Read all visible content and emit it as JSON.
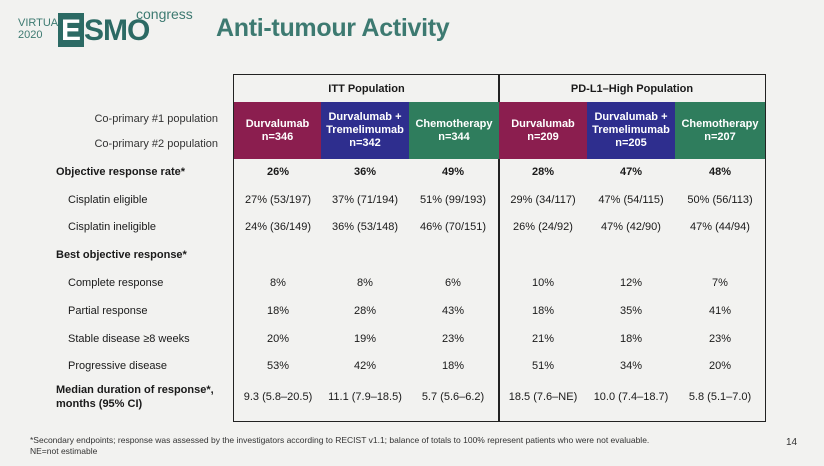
{
  "logo": {
    "virtual": "VIRTUAL",
    "year": "2020",
    "esmo_e": "E",
    "esmo_rest": "SMO",
    "congress": "congress"
  },
  "title": "Anti-tumour Activity",
  "groups": {
    "itt": "ITT Population",
    "pdl1": "PD-L1–High Population"
  },
  "coprimary": {
    "first": "Co-primary #1 population",
    "second": "Co-primary #2 population"
  },
  "columns": [
    {
      "name": "Durvalumab",
      "n": "n=346"
    },
    {
      "name1": "Durvalumab +",
      "name2": "Tremelimumab",
      "n": "n=342"
    },
    {
      "name": "Chemotherapy",
      "n": "n=344"
    },
    {
      "name": "Durvalumab",
      "n": "n=209"
    },
    {
      "name1": "Durvalumab +",
      "name2": "Tremelimumab",
      "n": "n=205"
    },
    {
      "name": "Chemotherapy",
      "n": "n=207"
    }
  ],
  "rows": [
    {
      "label": "Objective response rate*",
      "values": [
        "26%",
        "36%",
        "49%",
        "28%",
        "47%",
        "48%"
      ]
    },
    {
      "label": "Cisplatin eligible",
      "values": [
        "27% (53/197)",
        "37% (71/194)",
        "51% (99/193)",
        "29% (34/117)",
        "47% (54/115)",
        "50% (56/113)"
      ]
    },
    {
      "label": "Cisplatin ineligible",
      "values": [
        "24% (36/149)",
        "36% (53/148)",
        "46% (70/151)",
        "26% (24/92)",
        "47% (42/90)",
        "47% (44/94)"
      ]
    },
    {
      "label": "Best objective response*",
      "values": [
        "",
        "",
        "",
        "",
        "",
        ""
      ]
    },
    {
      "label": "Complete response",
      "values": [
        "8%",
        "8%",
        "6%",
        "10%",
        "12%",
        "7%"
      ]
    },
    {
      "label": "Partial response",
      "values": [
        "18%",
        "28%",
        "43%",
        "18%",
        "35%",
        "41%"
      ]
    },
    {
      "label": "Stable disease ≥8 weeks",
      "values": [
        "20%",
        "19%",
        "23%",
        "21%",
        "18%",
        "23%"
      ]
    },
    {
      "label": "Progressive disease",
      "values": [
        "53%",
        "42%",
        "18%",
        "51%",
        "34%",
        "20%"
      ]
    },
    {
      "label1": "Median duration of response*,",
      "label2": "months (95% CI)",
      "values": [
        "9.3 (5.8–20.5)",
        "11.1 (7.9–18.5)",
        "5.7 (5.6–6.2)",
        "18.5 (7.6–NE)",
        "10.0 (7.4–18.7)",
        "5.8 (5.1–7.0)"
      ]
    }
  ],
  "footnote": {
    "line1": "*Secondary endpoints; response was assessed by the investigators according to RECIST v1.1; balance of totals to 100% represent patients who were not evaluable.",
    "line2": "NE=not estimable"
  },
  "page_number": "14"
}
